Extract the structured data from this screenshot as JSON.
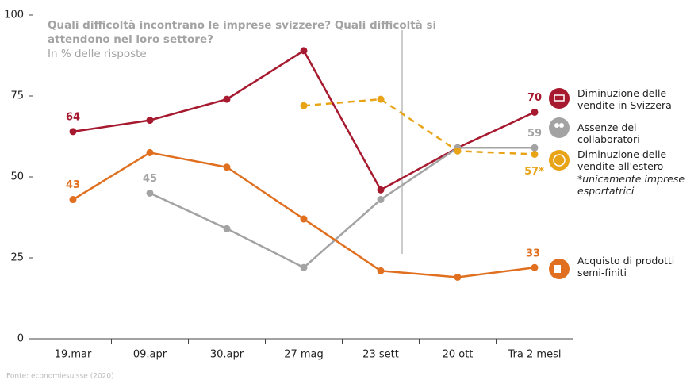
{
  "chart_data": {
    "type": "line",
    "title": [
      "Quali difficoltà incontrano le imprese svizzere? Quali difficoltà si",
      "attendono nel loro settore?"
    ],
    "subtitle": "In % delle risposte",
    "categories": [
      "19.mar",
      "09.apr",
      "30.apr",
      "27 mag",
      "23 sett",
      "20 ott",
      "Tra 2 mesi"
    ],
    "ylim": [
      0,
      100
    ],
    "yticks": [
      0,
      25,
      50,
      75,
      100
    ],
    "series": [
      {
        "name": "Diminuzione delle vendite in Svizzera",
        "color": "#a6192e",
        "dashed": false,
        "values": [
          64,
          67.5,
          74,
          89,
          46,
          59,
          70
        ],
        "value_labels": [
          "64",
          null,
          null,
          null,
          null,
          null,
          "70"
        ]
      },
      {
        "name": "Assenze dei collaboratori",
        "color": "#a3a3a3",
        "dashed": false,
        "values": [
          null,
          45,
          34,
          22,
          43,
          59,
          59
        ],
        "value_labels": [
          null,
          "45",
          null,
          null,
          null,
          null,
          "59"
        ]
      },
      {
        "name": "Diminuzione delle vendite all'estero",
        "color": "#e8a317",
        "dashed": true,
        "values": [
          null,
          null,
          null,
          72,
          74,
          58,
          57
        ],
        "value_labels": [
          null,
          null,
          null,
          null,
          null,
          null,
          "57*"
        ]
      },
      {
        "name": "Acquisto di prodotti semi-finiti",
        "color": "#e07020",
        "dashed": false,
        "values": [
          43,
          57.5,
          53,
          37,
          21,
          19,
          22
        ],
        "value_labels": [
          "43",
          null,
          null,
          null,
          null,
          null,
          null
        ]
      }
    ],
    "annotation": "33",
    "note": "*unicamente imprese esportatrici",
    "source": "Fonte: economiesuisse (2020)"
  }
}
